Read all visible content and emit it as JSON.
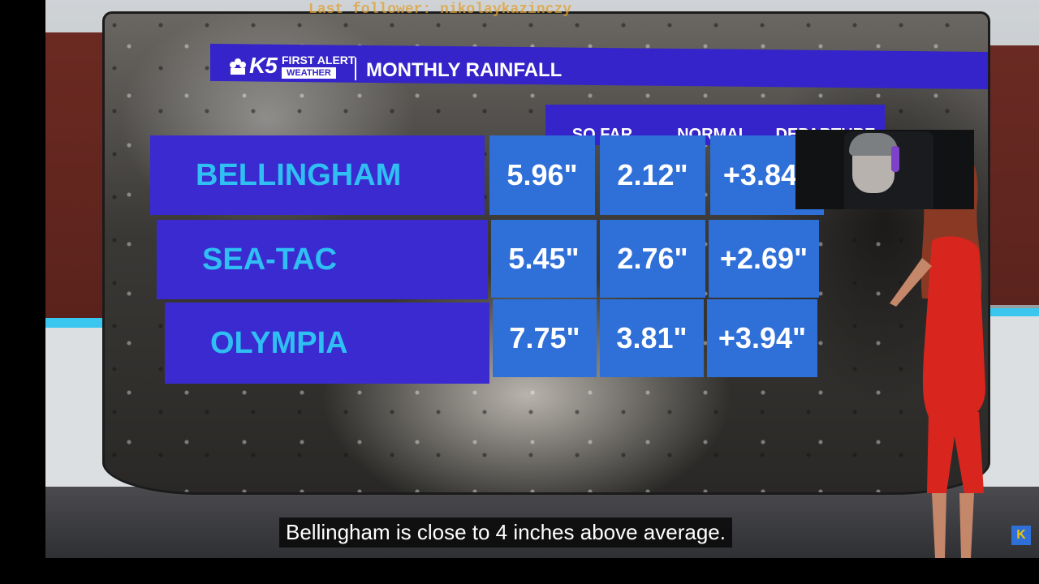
{
  "overlay": {
    "follower_text": "Last follower: nikolaykazinczy",
    "caption": "Bellingham is close to 4 inches above average."
  },
  "graphic": {
    "brand_logo": "K5",
    "brand_line1": "FIRST ALERT",
    "brand_line2": "WEATHER",
    "title": "MONTHLY RAINFALL",
    "columns": [
      "SO FAR",
      "NORMAL",
      "DEPARTURE"
    ],
    "rows": [
      {
        "city": "BELLINGHAM",
        "so_far": "5.96\"",
        "normal": "2.12\"",
        "departure": "+3.84\""
      },
      {
        "city": "SEA-TAC",
        "so_far": "5.45\"",
        "normal": "2.76\"",
        "departure": "+2.69\""
      },
      {
        "city": "OLYMPIA",
        "so_far": "7.75\"",
        "normal": "3.81\"",
        "departure": "+3.94\""
      }
    ]
  },
  "colors": {
    "title_bar": "#3524c9",
    "city_label_bg": "#3a2ad0",
    "city_label_text": "#2fbff2",
    "value_cell_bg": "#2f6fd8"
  },
  "corner_logo": "K"
}
